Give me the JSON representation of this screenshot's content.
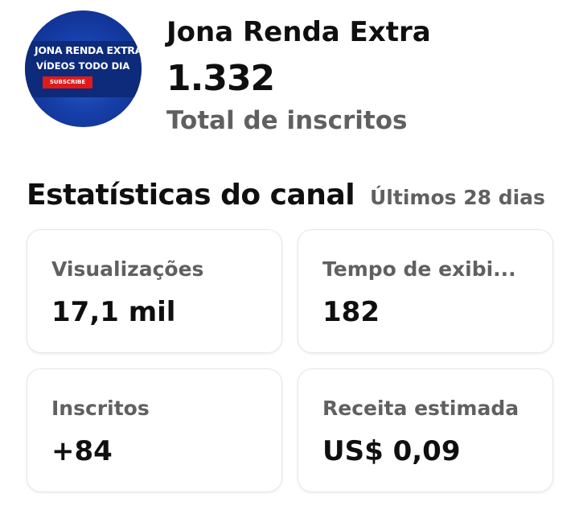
{
  "channel": {
    "avatar_line1": "JONA RENDA EXTRA",
    "avatar_line2": "VÍDEOS TODO DIA",
    "avatar_button": "SUBSCRIBE",
    "name": "Jona Renda Extra",
    "subscribers": "1.332",
    "subscribers_label": "Total de inscritos"
  },
  "stats": {
    "title": "Estatísticas do canal",
    "period": "Últimos 28 dias",
    "cards": [
      {
        "label": "Visualizações",
        "value": "17,1 mil"
      },
      {
        "label": "Tempo de exibi...",
        "value": "182"
      },
      {
        "label": "Inscritos",
        "value": "+84"
      },
      {
        "label": "Receita estimada",
        "value": "US$ 0,09"
      }
    ]
  }
}
